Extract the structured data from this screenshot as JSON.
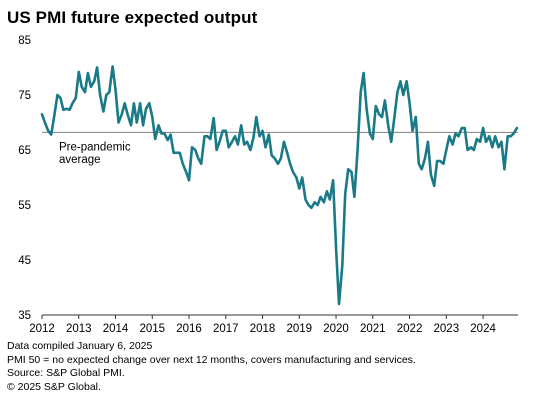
{
  "title": "US PMI future expected output",
  "notes": [
    "Data compiled January 6, 2025",
    "PMI 50 =  no expected change over next 12 months, covers manufacturing and services.",
    "Source: S&P Global PMI.",
    "© 2025 S&P Global."
  ],
  "colors": {
    "series": "#1a7a87",
    "reference": "#808080",
    "axis": "#333333"
  },
  "chart_data": {
    "type": "line",
    "title": "US PMI future expected output",
    "xlabel": "",
    "ylabel": "",
    "ylim": [
      35,
      85
    ],
    "xlim": [
      2012,
      2024.95
    ],
    "yticks": [
      35,
      45,
      55,
      65,
      75,
      85
    ],
    "xticks": [
      "2012",
      "2013",
      "2014",
      "2015",
      "2016",
      "2017",
      "2018",
      "2019",
      "2020",
      "2021",
      "2022",
      "2023",
      "2024"
    ],
    "grid": false,
    "reference_line": {
      "value": 68.2,
      "label": [
        "Pre-pandemic",
        "average"
      ]
    },
    "series": [
      {
        "x": [
          2012.0,
          2012.08,
          2012.17,
          2012.25,
          2012.33,
          2012.42,
          2012.5,
          2012.58,
          2012.67,
          2012.75,
          2012.83,
          2012.92,
          2013.0,
          2013.08,
          2013.17,
          2013.25,
          2013.33,
          2013.42,
          2013.5,
          2013.58,
          2013.67,
          2013.75,
          2013.83,
          2013.92,
          2014.0,
          2014.08,
          2014.17,
          2014.25,
          2014.33,
          2014.42,
          2014.5,
          2014.58,
          2014.67,
          2014.75,
          2014.83,
          2014.92,
          2015.0,
          2015.08,
          2015.17,
          2015.25,
          2015.33,
          2015.42,
          2015.5,
          2015.58,
          2015.67,
          2015.75,
          2015.83,
          2015.92,
          2016.0,
          2016.08,
          2016.17,
          2016.25,
          2016.33,
          2016.42,
          2016.5,
          2016.58,
          2016.67,
          2016.75,
          2016.83,
          2016.92,
          2017.0,
          2017.08,
          2017.17,
          2017.25,
          2017.33,
          2017.42,
          2017.5,
          2017.58,
          2017.67,
          2017.75,
          2017.83,
          2017.92,
          2018.0,
          2018.08,
          2018.17,
          2018.25,
          2018.33,
          2018.42,
          2018.5,
          2018.58,
          2018.67,
          2018.75,
          2018.83,
          2018.92,
          2019.0,
          2019.08,
          2019.17,
          2019.25,
          2019.33,
          2019.42,
          2019.5,
          2019.58,
          2019.67,
          2019.75,
          2019.83,
          2019.92,
          2020.0,
          2020.08,
          2020.17,
          2020.25,
          2020.33,
          2020.42,
          2020.5,
          2020.58,
          2020.67,
          2020.75,
          2020.83,
          2020.92,
          2021.0,
          2021.08,
          2021.17,
          2021.25,
          2021.33,
          2021.42,
          2021.5,
          2021.58,
          2021.67,
          2021.75,
          2021.83,
          2021.92,
          2022.0,
          2022.08,
          2022.17,
          2022.25,
          2022.33,
          2022.42,
          2022.5,
          2022.58,
          2022.67,
          2022.75,
          2022.83,
          2022.92,
          2023.0,
          2023.08,
          2023.17,
          2023.25,
          2023.33,
          2023.42,
          2023.5,
          2023.58,
          2023.67,
          2023.75,
          2023.83,
          2023.92,
          2024.0,
          2024.08,
          2024.17,
          2024.25,
          2024.33,
          2024.42,
          2024.5,
          2024.58,
          2024.67,
          2024.75,
          2024.83,
          2024.92
        ],
        "values": [
          71.5,
          70,
          68.5,
          67.8,
          71,
          75,
          74.5,
          72.3,
          72.5,
          72.3,
          73.5,
          74.5,
          79.2,
          76.5,
          75.5,
          79,
          76.5,
          77.5,
          80,
          75,
          72,
          75,
          75.5,
          80.2,
          76,
          70,
          71.5,
          73.5,
          71.5,
          69.5,
          73.5,
          70,
          73.5,
          69.5,
          72.5,
          73.5,
          71,
          67,
          69.5,
          68,
          68,
          66.8,
          67.8,
          64.5,
          64.5,
          64.5,
          62.5,
          61,
          59.5,
          65.5,
          65,
          63.5,
          62.5,
          67.5,
          67.5,
          67,
          70.8,
          65,
          66.5,
          68.5,
          68.5,
          65.5,
          66.5,
          67.5,
          66,
          69.5,
          66,
          66.5,
          65,
          67.2,
          71,
          67.5,
          68.5,
          65.5,
          67.8,
          64,
          63.5,
          62.5,
          63.5,
          66.5,
          64.5,
          62.5,
          61,
          60,
          58,
          60,
          56,
          55,
          54.5,
          55.5,
          55,
          56.5,
          55.5,
          57.5,
          56,
          59.5,
          47,
          37,
          44,
          57,
          61.5,
          61,
          56.5,
          64.5,
          75.5,
          79,
          72.5,
          68,
          67,
          73,
          71.5,
          71,
          74,
          69.5,
          66.5,
          70.5,
          75.5,
          77.5,
          75,
          77.5,
          73.5,
          68.5,
          71,
          62.5,
          61.5,
          63.5,
          66.5,
          60.5,
          58.5,
          63,
          63,
          62.5,
          65,
          67.5,
          66,
          68,
          67.5,
          69,
          69,
          65,
          65.5,
          65,
          67,
          66.5,
          69,
          66.5,
          67.5,
          65.5,
          67.5,
          65.5,
          66.5,
          61.5,
          67.5,
          67.5,
          68,
          69
        ]
      }
    ]
  }
}
